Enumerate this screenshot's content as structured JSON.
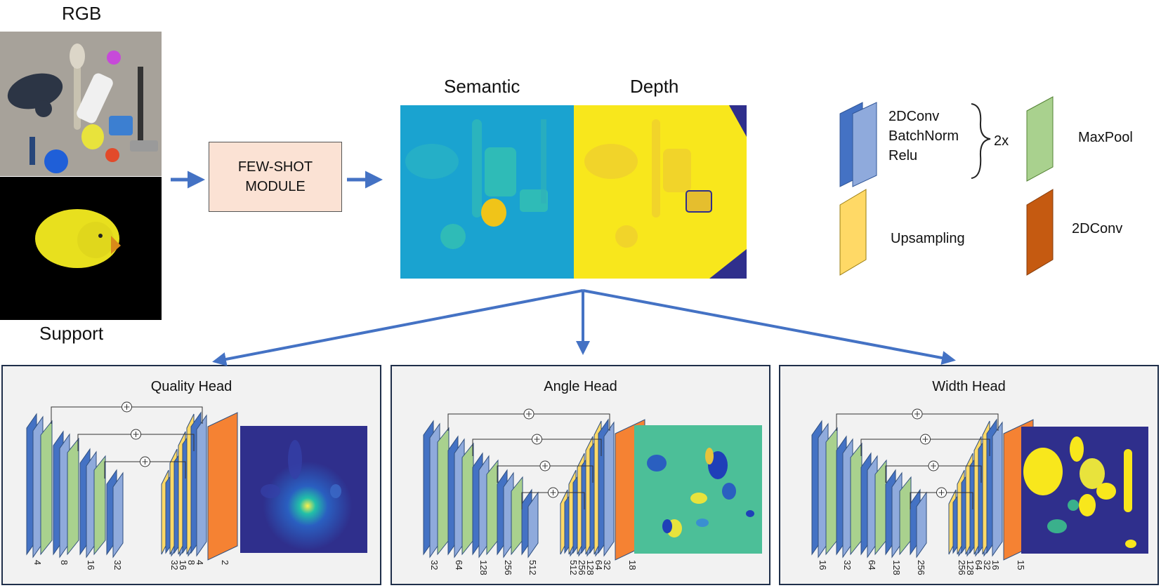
{
  "inputs": {
    "rgb_label": "RGB",
    "support_label": "Support"
  },
  "module": {
    "line1": "FEW-SHOT",
    "line2": "MODULE"
  },
  "outputs": {
    "semantic_label": "Semantic",
    "depth_label": "Depth"
  },
  "legend": {
    "conv_block_lines": [
      "2DConv",
      "BatchNorm",
      "Relu"
    ],
    "repeat": "2x",
    "maxpool": "MaxPool",
    "upsampling": "Upsampling",
    "conv": "2DConv"
  },
  "colors": {
    "conv_dark": "#4472c4",
    "conv_light": "#8faadc",
    "maxpool": "#a9d18e",
    "upsampling": "#ffd966",
    "final_conv": "#f58233",
    "legend_conv": "#c55a11",
    "arrow": "#4472c4",
    "semantic_bg": "#1aa3d0",
    "depth_bg": "#f8e71c",
    "map_bg": "#2f2f8c"
  },
  "heads": [
    {
      "title": "Quality Head",
      "channels": [
        "4",
        "8",
        "16",
        "32",
        "32",
        "16",
        "8",
        "4",
        "2"
      ]
    },
    {
      "title": "Angle Head",
      "channels": [
        "32",
        "64",
        "128",
        "256",
        "512",
        "512",
        "256",
        "128",
        "64",
        "32",
        "18"
      ]
    },
    {
      "title": "Width Head",
      "channels": [
        "16",
        "32",
        "64",
        "128",
        "256",
        "256",
        "128",
        "64",
        "32",
        "16",
        "15"
      ]
    }
  ]
}
